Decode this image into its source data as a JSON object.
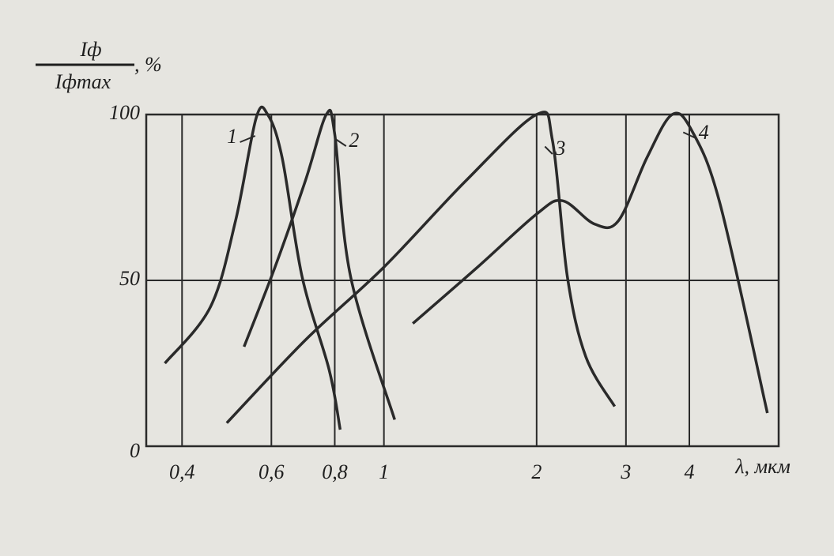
{
  "chart_data": {
    "type": "line",
    "ylabel": {
      "numerator": "Iф",
      "denominator": "Iфmax",
      "suffix": ", %"
    },
    "xlabel": "λ, мкм",
    "xscale": "log",
    "grid": true,
    "xlim": [
      0.34,
      6
    ],
    "ylim": [
      0,
      100
    ],
    "xticks": [
      {
        "value": 0.4,
        "label": "0,4"
      },
      {
        "value": 0.6,
        "label": "0,6"
      },
      {
        "value": 0.8,
        "label": "0,8"
      },
      1,
      2,
      3,
      4
    ],
    "yticks": [
      0,
      50,
      100
    ],
    "series": [
      {
        "name": "1",
        "color": "#2a2a2a",
        "x": [
          0.37,
          0.455,
          0.51,
          0.56,
          0.59,
          0.63,
          0.69,
          0.78,
          0.82
        ],
        "values": [
          25,
          42,
          68,
          99,
          100,
          87,
          51,
          23,
          5
        ]
      },
      {
        "name": "2",
        "color": "#2a2a2a",
        "x": [
          0.53,
          0.61,
          0.7,
          0.77,
          0.8,
          0.86,
          1.05
        ],
        "values": [
          30,
          54,
          80,
          100,
          94,
          51,
          8
        ]
      },
      {
        "name": "3",
        "color": "#2a2a2a",
        "x": [
          0.49,
          0.7,
          1,
          1.45,
          2,
          2.15,
          2.3,
          2.5,
          2.85
        ],
        "values": [
          7,
          32,
          54,
          80,
          100,
          92,
          51,
          27,
          12
        ]
      },
      {
        "name": "4",
        "color": "#2a2a2a",
        "x": [
          1.14,
          1.53,
          2,
          2.25,
          2.6,
          2.9,
          3.3,
          3.7,
          4.05,
          4.6,
          5.7
        ],
        "values": [
          37,
          54,
          70,
          74,
          67,
          68,
          87,
          100,
          95,
          73,
          10
        ]
      }
    ]
  }
}
